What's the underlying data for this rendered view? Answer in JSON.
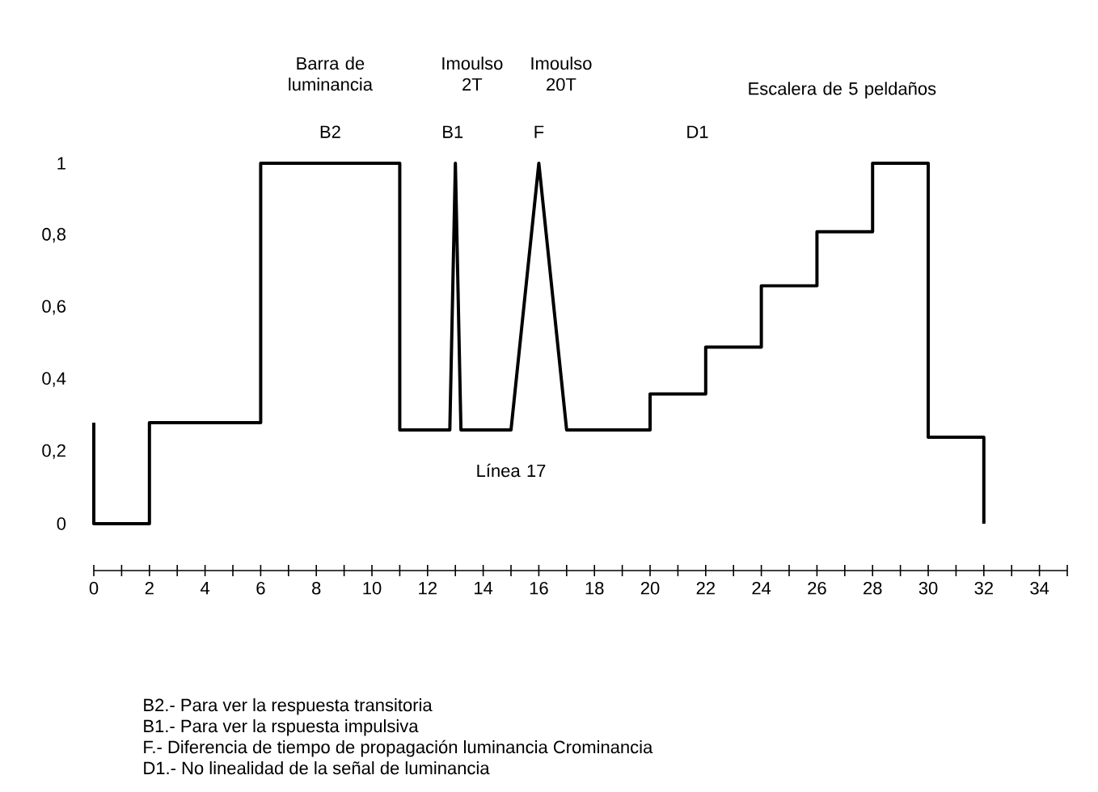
{
  "chart_data": {
    "type": "line",
    "series": [
      {
        "color": "#000000",
        "x": [
          0,
          0,
          2,
          2,
          6,
          6,
          11,
          11,
          12.8,
          13,
          13.2,
          15,
          16,
          17,
          20,
          20,
          22,
          22,
          24,
          24,
          26,
          26,
          28,
          28,
          30,
          30,
          32,
          32
        ],
        "values": [
          0.28,
          0,
          0,
          0.28,
          0.28,
          1,
          1,
          0.26,
          0.26,
          1,
          0.26,
          0.26,
          1,
          0.26,
          0.26,
          0.36,
          0.36,
          0.49,
          0.49,
          0.66,
          0.66,
          0.81,
          0.81,
          1,
          1,
          0.24,
          0.24,
          0
        ]
      }
    ],
    "xlim": [
      0,
      35
    ],
    "ylim": [
      -0.13,
      1
    ],
    "xticks": [
      0,
      {
        "value": 1,
        "label": null
      },
      2,
      {
        "value": 3,
        "label": null
      },
      4,
      {
        "value": 5,
        "label": null
      },
      6,
      {
        "value": 7,
        "label": null
      },
      8,
      {
        "value": 9,
        "label": null
      },
      10,
      {
        "value": 11,
        "label": null
      },
      12,
      {
        "value": 13,
        "label": null
      },
      14,
      {
        "value": 15,
        "label": null
      },
      16,
      {
        "value": 17,
        "label": null
      },
      18,
      {
        "value": 19,
        "label": null
      },
      20,
      {
        "value": 21,
        "label": null
      },
      22,
      {
        "value": 23,
        "label": null
      },
      24,
      {
        "value": 25,
        "label": null
      },
      26,
      {
        "value": 27,
        "label": null
      },
      28,
      {
        "value": 29,
        "label": null
      },
      30,
      {
        "value": 31,
        "label": null
      },
      32,
      {
        "value": 33,
        "label": null
      },
      34,
      {
        "value": 35,
        "label": null
      }
    ],
    "yticks": [
      0,
      {
        "value": 0.2,
        "label": "0,2"
      },
      {
        "value": 0.4,
        "label": "0,4"
      },
      {
        "value": 0.6,
        "label": "0,6"
      },
      {
        "value": 0.8,
        "label": "0,8"
      },
      1
    ],
    "marker": "none",
    "line_style": "solid",
    "annotations": [
      "Barra de luminancia",
      "Imoulso 2T",
      "Imoulso 20T",
      "Escalera de 5 peldaños",
      "B2",
      "B1",
      "F",
      "D1",
      "Línea 17",
      "B2.- Para ver la respuesta transitoria",
      "B1.- Para ver la rspuesta impulsiva",
      "F.- Diferencia de tiempo de propagación luminancia Crominancia",
      "D1.- No linealidad de la señal de luminancia"
    ]
  }
}
